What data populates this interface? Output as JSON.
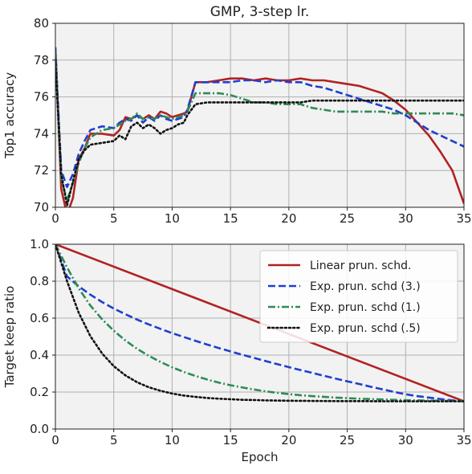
{
  "chart_data": [
    {
      "type": "line",
      "title": "GMP, 3-step lr.",
      "xlabel": "",
      "ylabel": "Top1 accuracy",
      "xlim": [
        0,
        35
      ],
      "ylim": [
        70,
        80
      ],
      "xticks": [
        0,
        5,
        10,
        15,
        20,
        25,
        30,
        35
      ],
      "yticks": [
        70,
        72,
        74,
        76,
        78,
        80
      ],
      "grid": true,
      "series": [
        {
          "color": "#b22222",
          "dash": "solid",
          "x": [
            0,
            0.5,
            1,
            1.5,
            2,
            2.5,
            3,
            4,
            5,
            5.5,
            6,
            6.5,
            7,
            7.5,
            8,
            8.5,
            9,
            9.5,
            10,
            10.5,
            11,
            11.3,
            12,
            13,
            14,
            15,
            16,
            17,
            18,
            19,
            20,
            21,
            22,
            23,
            24,
            25,
            26,
            27,
            28,
            29,
            30,
            31,
            32,
            33,
            34,
            35
          ],
          "y": [
            78.7,
            71.0,
            69.6,
            70.5,
            72.6,
            73.2,
            74.0,
            74.0,
            73.9,
            74.2,
            74.9,
            74.8,
            75.0,
            74.8,
            75.0,
            74.8,
            75.2,
            75.1,
            74.9,
            75.0,
            75.1,
            75.2,
            76.8,
            76.8,
            76.9,
            77.0,
            77.0,
            76.9,
            77.0,
            76.9,
            76.9,
            77.0,
            76.9,
            76.9,
            76.8,
            76.7,
            76.6,
            76.4,
            76.2,
            75.8,
            75.3,
            74.6,
            73.9,
            73.0,
            72.0,
            70.2
          ]
        },
        {
          "color": "#1f3fcf",
          "dash": "dashed",
          "x": [
            0,
            0.5,
            1,
            1.5,
            2,
            2.5,
            3,
            4,
            5,
            5.5,
            6,
            6.5,
            7,
            7.5,
            8,
            8.5,
            9,
            9.5,
            10,
            10.5,
            11,
            11.3,
            12,
            13,
            14,
            15,
            16,
            17,
            18,
            19,
            20,
            21,
            22,
            23,
            24,
            25,
            26,
            27,
            28,
            29,
            30,
            31,
            32,
            33,
            34,
            35
          ],
          "y": [
            78.6,
            72.0,
            71.1,
            71.8,
            72.9,
            73.6,
            74.2,
            74.4,
            74.3,
            74.6,
            74.8,
            74.7,
            75.0,
            74.6,
            74.9,
            74.7,
            75.0,
            74.8,
            74.7,
            74.8,
            74.9,
            75.3,
            76.8,
            76.8,
            76.8,
            76.8,
            76.9,
            76.9,
            76.8,
            76.9,
            76.8,
            76.8,
            76.6,
            76.5,
            76.3,
            76.1,
            75.9,
            75.7,
            75.5,
            75.3,
            75.0,
            74.6,
            74.2,
            73.9,
            73.6,
            73.3
          ]
        },
        {
          "color": "#2e8b57",
          "dash": "dashdot",
          "x": [
            0,
            0.5,
            1,
            1.5,
            2,
            2.5,
            3,
            4,
            5,
            5.5,
            6,
            6.5,
            7,
            7.5,
            8,
            8.5,
            9,
            9.5,
            10,
            10.5,
            11,
            11.3,
            12,
            13,
            14,
            15,
            16,
            17,
            18,
            19,
            20,
            21,
            22,
            23,
            24,
            25,
            26,
            27,
            28,
            29,
            30,
            31,
            32,
            33,
            34,
            35
          ],
          "y": [
            78.5,
            71.5,
            70.4,
            71.3,
            72.4,
            73.2,
            73.8,
            74.2,
            74.3,
            74.5,
            74.7,
            74.8,
            75.1,
            74.8,
            74.9,
            74.8,
            75.0,
            74.9,
            74.8,
            74.9,
            75.0,
            75.2,
            76.2,
            76.2,
            76.2,
            76.1,
            75.9,
            75.7,
            75.7,
            75.6,
            75.6,
            75.6,
            75.4,
            75.3,
            75.2,
            75.2,
            75.2,
            75.2,
            75.2,
            75.1,
            75.1,
            75.1,
            75.1,
            75.1,
            75.1,
            75.0
          ]
        },
        {
          "color": "#111111",
          "dash": "dotted",
          "x": [
            0,
            0.5,
            1,
            1.5,
            2,
            2.5,
            3,
            4,
            5,
            5.5,
            6,
            6.5,
            7,
            7.5,
            8,
            8.5,
            9,
            9.5,
            10,
            10.5,
            11,
            11.3,
            12,
            13,
            14,
            15,
            16,
            17,
            18,
            19,
            20,
            21,
            22,
            23,
            24,
            25,
            26,
            27,
            28,
            29,
            30,
            31,
            32,
            33,
            34,
            35
          ],
          "y": [
            78.0,
            71.8,
            70.1,
            71.4,
            72.6,
            73.1,
            73.4,
            73.5,
            73.6,
            73.9,
            73.7,
            74.4,
            74.6,
            74.3,
            74.5,
            74.3,
            74.0,
            74.2,
            74.3,
            74.5,
            74.6,
            75.0,
            75.6,
            75.7,
            75.7,
            75.7,
            75.7,
            75.7,
            75.7,
            75.7,
            75.7,
            75.7,
            75.8,
            75.8,
            75.8,
            75.8,
            75.8,
            75.8,
            75.8,
            75.8,
            75.8,
            75.8,
            75.8,
            75.8,
            75.8,
            75.8
          ]
        }
      ]
    },
    {
      "type": "line",
      "title": "",
      "xlabel": "Epoch",
      "ylabel": "Target keep ratio",
      "xlim": [
        0,
        35
      ],
      "ylim": [
        0.0,
        1.0
      ],
      "xticks": [
        0,
        5,
        10,
        15,
        20,
        25,
        30,
        35
      ],
      "yticks": [
        0.0,
        0.2,
        0.4,
        0.6,
        0.8,
        1.0
      ],
      "grid": true,
      "legend_position": "upper right",
      "series": [
        {
          "name": "Linear prun. schd.",
          "color": "#b22222",
          "dash": "solid",
          "x": [
            0,
            35
          ],
          "y": [
            1.0,
            0.15
          ]
        },
        {
          "name": "Exp. prun. schd (3.)",
          "color": "#1f3fcf",
          "dash": "dashed",
          "x": [
            0,
            1,
            2,
            3,
            4,
            5,
            6,
            7,
            8,
            9,
            10,
            11,
            12,
            13,
            14,
            15,
            16,
            17,
            18,
            19,
            20,
            21,
            22,
            23,
            24,
            25,
            26,
            27,
            28,
            29,
            30,
            31,
            32,
            33,
            34,
            35
          ],
          "y": [
            1.0,
            0.826,
            0.772,
            0.727,
            0.687,
            0.652,
            0.621,
            0.592,
            0.566,
            0.542,
            0.519,
            0.498,
            0.477,
            0.457,
            0.438,
            0.42,
            0.402,
            0.385,
            0.368,
            0.351,
            0.335,
            0.319,
            0.304,
            0.288,
            0.273,
            0.258,
            0.244,
            0.229,
            0.215,
            0.201,
            0.188,
            0.178,
            0.17,
            0.162,
            0.155,
            0.15
          ]
        },
        {
          "name": "Exp. prun. schd (1.)",
          "color": "#2e8b57",
          "dash": "dashdot",
          "x": [
            0,
            1,
            2,
            3,
            4,
            5,
            6,
            7,
            8,
            9,
            10,
            11,
            12,
            13,
            14,
            15,
            16,
            17,
            18,
            19,
            20,
            21,
            22,
            23,
            24,
            25,
            26,
            27,
            28,
            29,
            30,
            31,
            32,
            33,
            34,
            35
          ],
          "y": [
            1.0,
            0.874,
            0.761,
            0.668,
            0.594,
            0.532,
            0.479,
            0.434,
            0.396,
            0.363,
            0.334,
            0.309,
            0.287,
            0.268,
            0.251,
            0.237,
            0.225,
            0.214,
            0.204,
            0.196,
            0.189,
            0.183,
            0.178,
            0.174,
            0.17,
            0.167,
            0.164,
            0.162,
            0.16,
            0.158,
            0.156,
            0.155,
            0.154,
            0.153,
            0.152,
            0.151
          ]
        },
        {
          "name": "Exp. prun. schd (.5)",
          "color": "#111111",
          "dash": "dotted",
          "x": [
            0,
            1,
            2,
            3,
            4,
            5,
            6,
            7,
            8,
            9,
            10,
            11,
            12,
            13,
            14,
            15,
            16,
            17,
            18,
            19,
            20,
            22,
            24,
            26,
            28,
            30,
            32,
            35
          ],
          "y": [
            1.0,
            0.8,
            0.629,
            0.502,
            0.409,
            0.34,
            0.29,
            0.253,
            0.226,
            0.207,
            0.192,
            0.181,
            0.174,
            0.168,
            0.164,
            0.161,
            0.158,
            0.157,
            0.155,
            0.154,
            0.153,
            0.152,
            0.151,
            0.151,
            0.15,
            0.15,
            0.15,
            0.15
          ]
        }
      ]
    }
  ]
}
